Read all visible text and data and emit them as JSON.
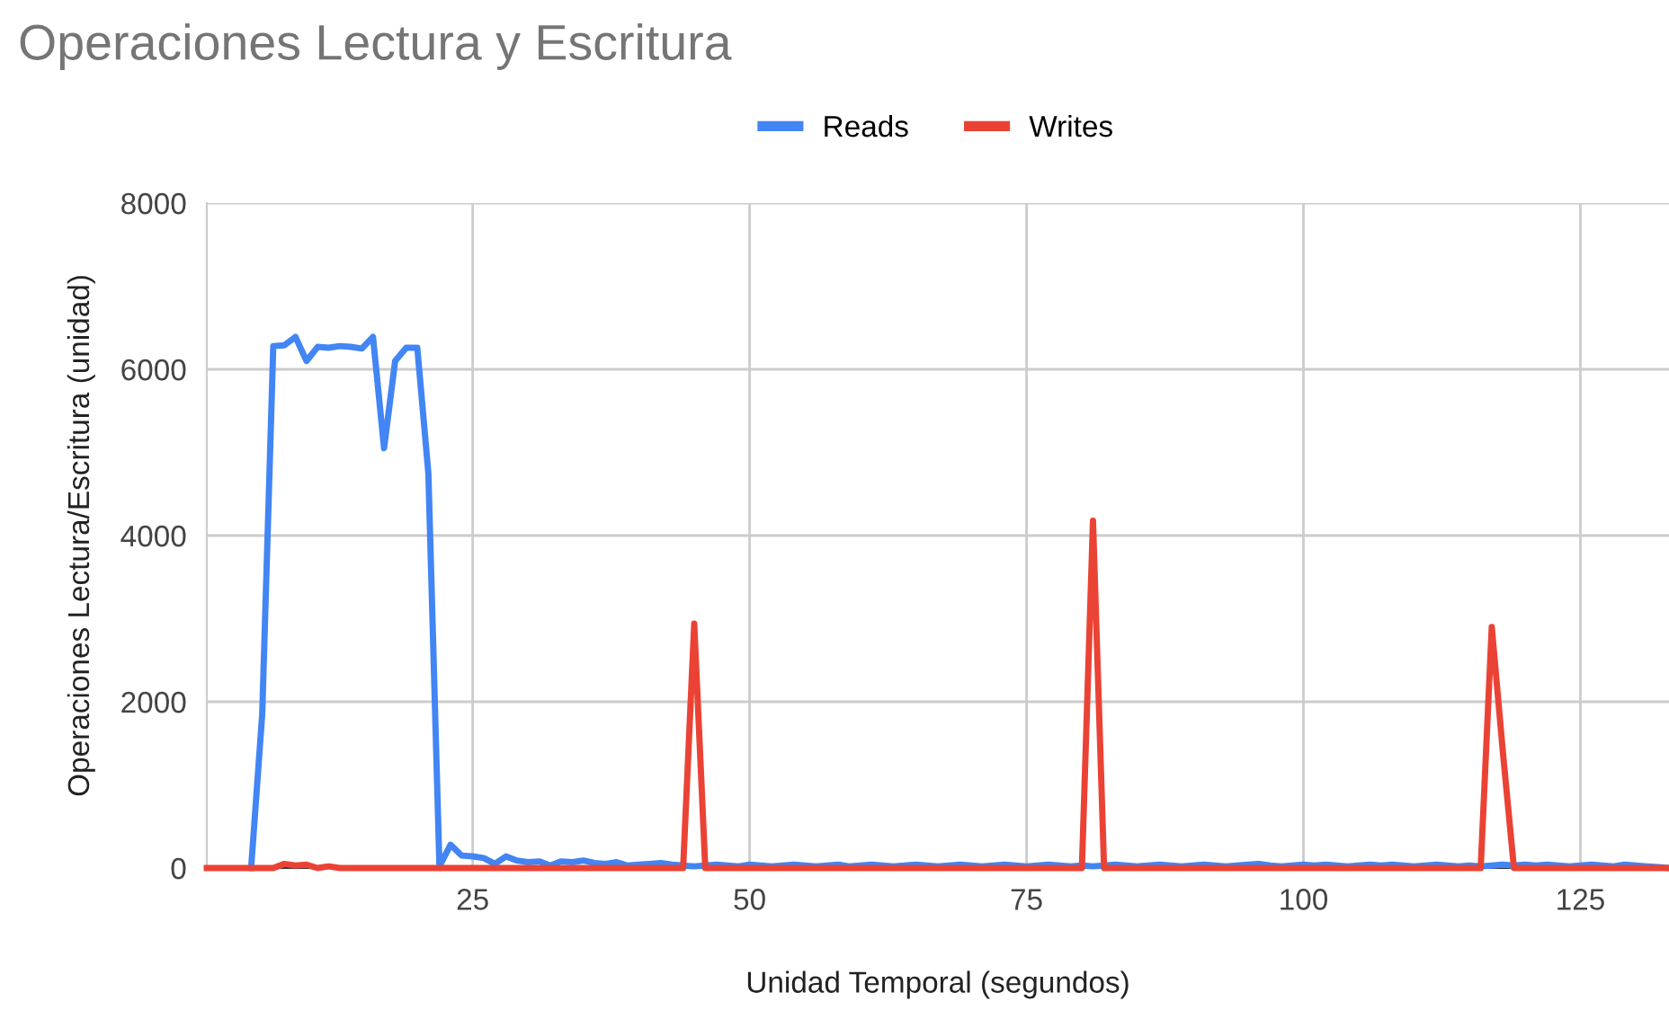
{
  "chart_data": {
    "type": "line",
    "title": "Operaciones Lectura y Escritura",
    "xlabel": "Unidad Temporal (segundos)",
    "ylabel": "Operaciones Lectura/Escritura (unidad)",
    "x": [
      1,
      2,
      3,
      4,
      5,
      6,
      7,
      8,
      9,
      10,
      11,
      12,
      13,
      14,
      15,
      16,
      17,
      18,
      19,
      20,
      21,
      22,
      23,
      24,
      25,
      26,
      27,
      28,
      29,
      30,
      31,
      32,
      33,
      34,
      35,
      36,
      37,
      38,
      39,
      40,
      41,
      42,
      43,
      44,
      45,
      46,
      47,
      48,
      49,
      50,
      51,
      52,
      53,
      54,
      55,
      56,
      57,
      58,
      59,
      60,
      61,
      62,
      63,
      64,
      65,
      66,
      67,
      68,
      69,
      70,
      71,
      72,
      73,
      74,
      75,
      76,
      77,
      78,
      79,
      80,
      81,
      82,
      83,
      84,
      85,
      86,
      87,
      88,
      89,
      90,
      91,
      92,
      93,
      94,
      95,
      96,
      97,
      98,
      99,
      100,
      101,
      102,
      103,
      104,
      105,
      106,
      107,
      108,
      109,
      110,
      111,
      112,
      113,
      114,
      115,
      116,
      117,
      118,
      119,
      120,
      121,
      122,
      123,
      124,
      125,
      126,
      127,
      128,
      129,
      130,
      131,
      132,
      133
    ],
    "series": [
      {
        "name": "Reads",
        "color": "#4285f4",
        "values": [
          null,
          null,
          null,
          null,
          0,
          1850,
          6280,
          6290,
          6390,
          6100,
          6270,
          6260,
          6280,
          6270,
          6250,
          6390,
          5050,
          6100,
          6260,
          6260,
          4750,
          20,
          280,
          150,
          140,
          120,
          50,
          140,
          90,
          70,
          80,
          30,
          80,
          70,
          90,
          60,
          50,
          70,
          30,
          40,
          50,
          60,
          40,
          30,
          20,
          30,
          40,
          30,
          20,
          40,
          30,
          20,
          30,
          40,
          30,
          20,
          30,
          40,
          20,
          30,
          40,
          30,
          20,
          30,
          40,
          30,
          20,
          30,
          40,
          30,
          20,
          30,
          40,
          30,
          20,
          30,
          40,
          30,
          20,
          30,
          20,
          30,
          40,
          30,
          20,
          30,
          40,
          30,
          20,
          30,
          40,
          30,
          20,
          30,
          40,
          50,
          30,
          20,
          30,
          40,
          30,
          40,
          30,
          20,
          30,
          40,
          30,
          40,
          30,
          20,
          30,
          40,
          30,
          20,
          30,
          20,
          30,
          40,
          30,
          40,
          30,
          40,
          30,
          20,
          30,
          40,
          30,
          20,
          40,
          30,
          20,
          10,
          0
        ]
      },
      {
        "name": "Writes",
        "color": "#ea4335",
        "values": [
          0,
          0,
          0,
          0,
          0,
          0,
          0,
          50,
          30,
          40,
          0,
          20,
          0,
          0,
          0,
          0,
          0,
          0,
          0,
          0,
          0,
          0,
          0,
          0,
          0,
          0,
          0,
          0,
          0,
          0,
          0,
          0,
          0,
          0,
          0,
          0,
          0,
          0,
          0,
          0,
          0,
          0,
          0,
          0,
          2940,
          0,
          0,
          0,
          0,
          0,
          0,
          0,
          0,
          0,
          0,
          0,
          0,
          0,
          0,
          0,
          0,
          0,
          0,
          0,
          0,
          0,
          0,
          0,
          0,
          0,
          0,
          0,
          0,
          0,
          0,
          0,
          0,
          0,
          0,
          0,
          4180,
          0,
          0,
          0,
          0,
          0,
          0,
          0,
          0,
          0,
          0,
          0,
          0,
          0,
          0,
          0,
          0,
          0,
          0,
          0,
          0,
          0,
          0,
          0,
          0,
          0,
          0,
          0,
          0,
          0,
          0,
          0,
          0,
          0,
          0,
          0,
          2900,
          1400,
          0,
          0,
          0,
          0,
          0,
          0,
          0,
          0,
          0,
          0,
          0,
          0,
          0,
          0,
          0
        ]
      }
    ],
    "xlim": [
      1,
      133
    ],
    "ylim": [
      0,
      8000
    ],
    "xticks": [
      25,
      50,
      75,
      100,
      125
    ],
    "yticks": [
      0,
      2000,
      4000,
      6000,
      8000
    ],
    "grid": true,
    "legend": "top",
    "marker": "none",
    "line_style": "solid"
  }
}
